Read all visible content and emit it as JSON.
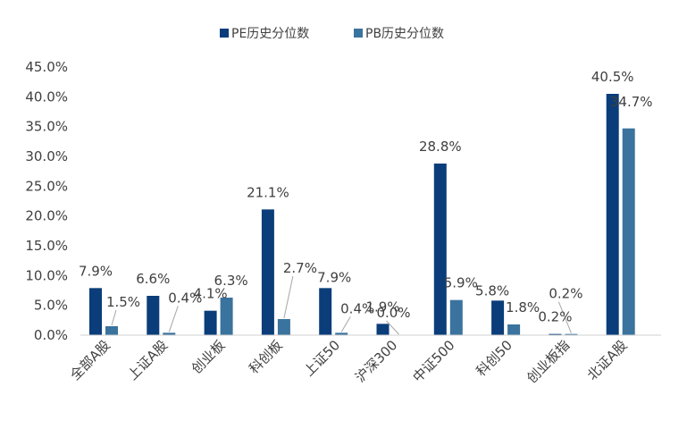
{
  "colors": {
    "pe": "#0a3d7a",
    "pb": "#3a739e",
    "axis": "#d0d0d0",
    "text": "#404040",
    "leader": "#a6a6a6"
  },
  "chart_data": {
    "type": "bar",
    "categories": [
      "全部A股",
      "上证A股",
      "创业板",
      "科创板",
      "上证50",
      "沪深300",
      "中证500",
      "科创50",
      "创业板指",
      "北证A股"
    ],
    "series": [
      {
        "name": "PE历史分位数",
        "values": [
          7.9,
          6.6,
          4.1,
          21.1,
          7.9,
          1.9,
          28.8,
          5.8,
          0.2,
          40.5
        ]
      },
      {
        "name": "PB历史分位数",
        "values": [
          1.5,
          0.4,
          6.3,
          2.7,
          0.4,
          0.0,
          5.9,
          1.8,
          0.2,
          34.7
        ]
      }
    ],
    "data_labels": [
      [
        "7.9%",
        "6.6%",
        "4.1%",
        "21.1%",
        "7.9%",
        "1.9%",
        "28.8%",
        "5.8%",
        "0.2%",
        "40.5%"
      ],
      [
        "1.5%",
        "0.4%",
        "6.3%",
        "2.7%",
        "0.4%",
        "0.0%",
        "5.9%",
        "1.8%",
        "0.2%",
        "34.7%"
      ]
    ],
    "ylim": [
      0,
      45
    ],
    "yticks": [
      0,
      5,
      10,
      15,
      20,
      25,
      30,
      35,
      40,
      45
    ],
    "ytick_labels": [
      "0.0%",
      "5.0%",
      "10.0%",
      "15.0%",
      "20.0%",
      "25.0%",
      "30.0%",
      "35.0%",
      "40.0%",
      "45.0%"
    ],
    "legend_position": "top-center",
    "grid": false
  }
}
